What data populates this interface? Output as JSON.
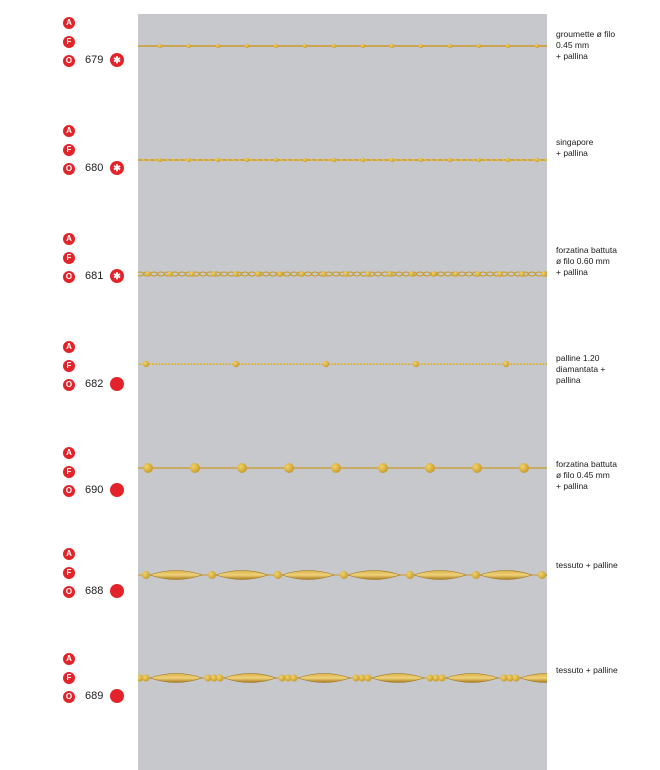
{
  "colors": {
    "panel": "#c7c8cb",
    "badge": "#e3232a",
    "gold": "#c89a2a",
    "gold_light": "#f1d36a"
  },
  "badge_letters": [
    "A",
    "F",
    "O"
  ],
  "items": [
    {
      "code": "679",
      "marker": "asterisk",
      "description": "groumette ø filo\n0.45 mm\n+ pallina",
      "chain": "fine-beads"
    },
    {
      "code": "680",
      "marker": "asterisk",
      "description": "singapore\n+ pallina",
      "chain": "singapore"
    },
    {
      "code": "681",
      "marker": "asterisk",
      "description": "forzatina battuta\nø filo 0.60 mm\n+ pallina",
      "chain": "forzatina-dense"
    },
    {
      "code": "682",
      "marker": "dot",
      "description": "palline 1.20\ndiamantata +\npallina",
      "chain": "ball-chain"
    },
    {
      "code": "690",
      "marker": "dot",
      "description": "forzatina battuta\nø filo 0.45 mm\n+ pallina",
      "chain": "big-beads"
    },
    {
      "code": "688",
      "marker": "dot",
      "description": "tessuto + palline",
      "chain": "mesh-single"
    },
    {
      "code": "689",
      "marker": "dot",
      "description": "tessuto + palline",
      "chain": "mesh-triple"
    }
  ]
}
